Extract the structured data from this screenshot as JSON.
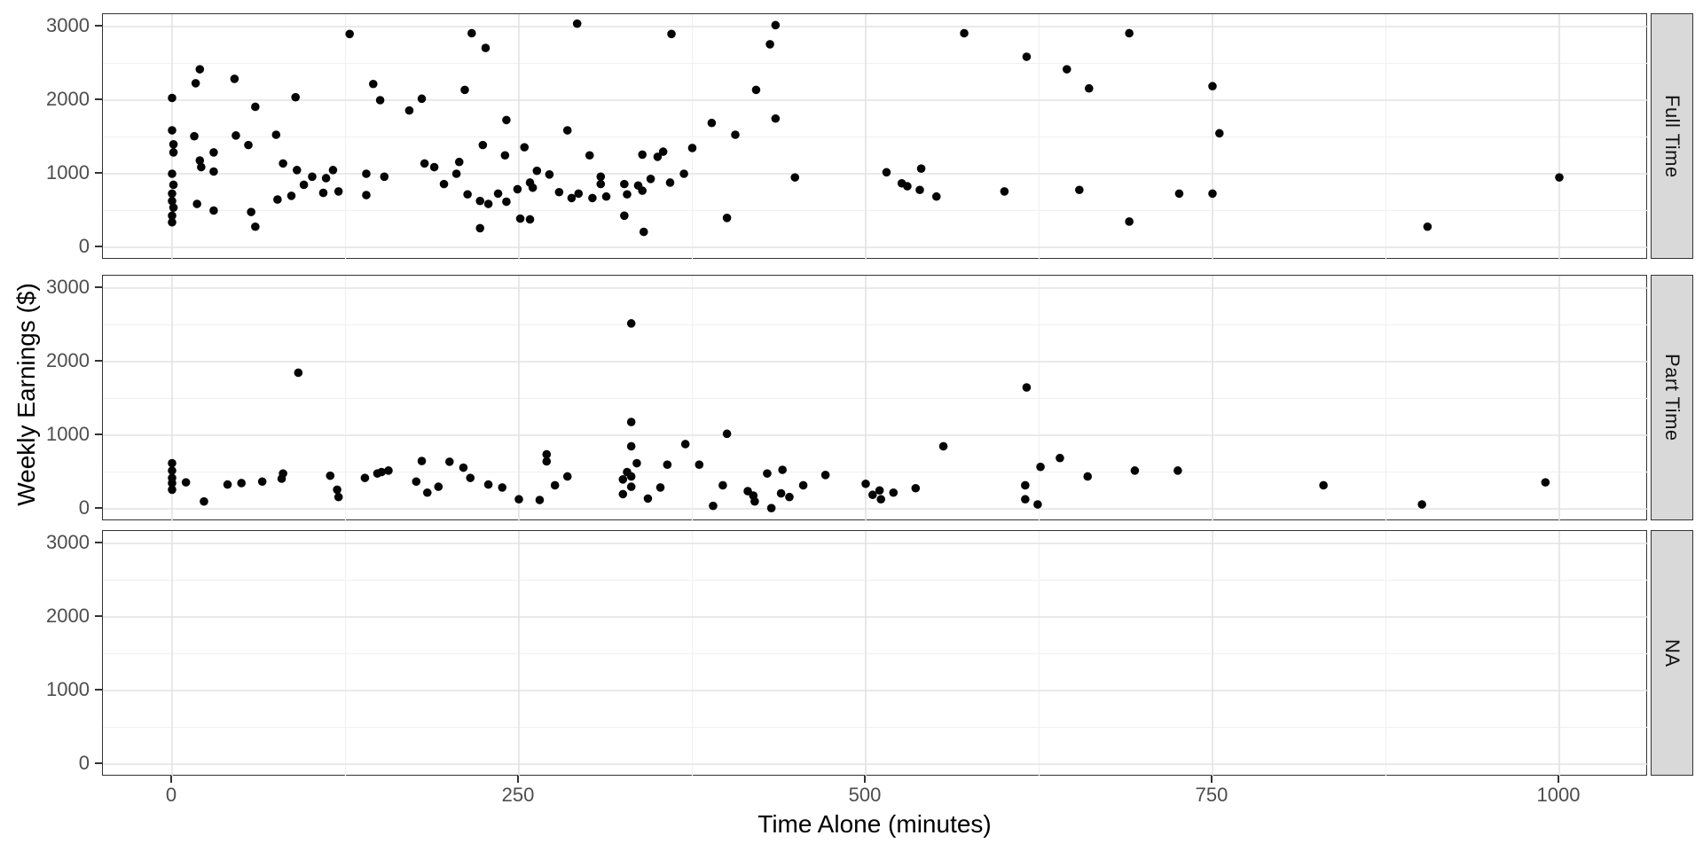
{
  "chart_data": {
    "type": "scatter",
    "title": "",
    "xlabel": "Time Alone (minutes)",
    "ylabel": "Weekly Earnings ($)",
    "x_ticks": [
      0,
      250,
      500,
      750,
      1000
    ],
    "x_minor_ticks": [
      125,
      375,
      625,
      875
    ],
    "y_ticks": [
      0,
      1000,
      2000,
      3000
    ],
    "y_minor_ticks": [
      500,
      1500,
      2500
    ],
    "xlim": [
      -50,
      1064
    ],
    "ylim": [
      -165,
      3170
    ],
    "legend": "none",
    "grid": "on",
    "facet_variable_position": "right",
    "facets": [
      {
        "label": "Full Time",
        "points": [
          [
            0,
            2030
          ],
          [
            0,
            1590
          ],
          [
            1,
            1400
          ],
          [
            1,
            1290
          ],
          [
            0,
            1000
          ],
          [
            1,
            850
          ],
          [
            0,
            730
          ],
          [
            0,
            630
          ],
          [
            1,
            540
          ],
          [
            0,
            430
          ],
          [
            0,
            340
          ],
          [
            17,
            2230
          ],
          [
            20,
            2420
          ],
          [
            45,
            2290
          ],
          [
            16,
            1510
          ],
          [
            20,
            1180
          ],
          [
            21,
            1090
          ],
          [
            30,
            1290
          ],
          [
            30,
            1030
          ],
          [
            46,
            1520
          ],
          [
            55,
            1390
          ],
          [
            60,
            1910
          ],
          [
            75,
            1530
          ],
          [
            80,
            1140
          ],
          [
            89,
            2040
          ],
          [
            90,
            1050
          ],
          [
            95,
            850
          ],
          [
            101,
            960
          ],
          [
            111,
            940
          ],
          [
            109,
            740
          ],
          [
            116,
            1050
          ],
          [
            120,
            760
          ],
          [
            76,
            650
          ],
          [
            86,
            700
          ],
          [
            18,
            590
          ],
          [
            30,
            500
          ],
          [
            57,
            480
          ],
          [
            60,
            280
          ],
          [
            128,
            2900
          ],
          [
            140,
            1000
          ],
          [
            153,
            960
          ],
          [
            140,
            710
          ],
          [
            145,
            2220
          ],
          [
            150,
            2000
          ],
          [
            171,
            1860
          ],
          [
            180,
            2020
          ],
          [
            182,
            1140
          ],
          [
            189,
            1090
          ],
          [
            196,
            860
          ],
          [
            205,
            1000
          ],
          [
            207,
            1160
          ],
          [
            211,
            2140
          ],
          [
            216,
            2910
          ],
          [
            226,
            2710
          ],
          [
            241,
            1730
          ],
          [
            224,
            1390
          ],
          [
            254,
            1360
          ],
          [
            240,
            1250
          ],
          [
            235,
            730
          ],
          [
            228,
            590
          ],
          [
            241,
            620
          ],
          [
            249,
            790
          ],
          [
            258,
            880
          ],
          [
            260,
            810
          ],
          [
            251,
            390
          ],
          [
            258,
            380
          ],
          [
            222,
            630
          ],
          [
            222,
            260
          ],
          [
            213,
            720
          ],
          [
            263,
            1040
          ],
          [
            272,
            990
          ],
          [
            279,
            750
          ],
          [
            285,
            1590
          ],
          [
            292,
            3040
          ],
          [
            435,
            3020
          ],
          [
            360,
            2900
          ],
          [
            431,
            2760
          ],
          [
            571,
            2910
          ],
          [
            690,
            2910
          ],
          [
            616,
            2590
          ],
          [
            645,
            2420
          ],
          [
            661,
            2160
          ],
          [
            421,
            2140
          ],
          [
            389,
            1690
          ],
          [
            435,
            1750
          ],
          [
            406,
            1530
          ],
          [
            375,
            1350
          ],
          [
            354,
            1300
          ],
          [
            339,
            1260
          ],
          [
            350,
            1230
          ],
          [
            301,
            1250
          ],
          [
            369,
            1000
          ],
          [
            309,
            960
          ],
          [
            309,
            860
          ],
          [
            326,
            860
          ],
          [
            345,
            930
          ],
          [
            336,
            840
          ],
          [
            339,
            770
          ],
          [
            359,
            880
          ],
          [
            293,
            730
          ],
          [
            288,
            670
          ],
          [
            303,
            670
          ],
          [
            313,
            690
          ],
          [
            328,
            720
          ],
          [
            449,
            950
          ],
          [
            326,
            430
          ],
          [
            340,
            210
          ],
          [
            400,
            400
          ],
          [
            515,
            1020
          ],
          [
            526,
            870
          ],
          [
            530,
            830
          ],
          [
            539,
            780
          ],
          [
            540,
            1070
          ],
          [
            551,
            690
          ],
          [
            600,
            760
          ],
          [
            654,
            780
          ],
          [
            690,
            350
          ],
          [
            750,
            2190
          ],
          [
            755,
            1550
          ],
          [
            726,
            730
          ],
          [
            750,
            730
          ],
          [
            1000,
            950
          ],
          [
            905,
            280
          ]
        ]
      },
      {
        "label": "Part Time",
        "points": [
          [
            0,
            620
          ],
          [
            0,
            520
          ],
          [
            0,
            420
          ],
          [
            0,
            350
          ],
          [
            0,
            260
          ],
          [
            10,
            360
          ],
          [
            23,
            100
          ],
          [
            40,
            330
          ],
          [
            50,
            350
          ],
          [
            65,
            370
          ],
          [
            79,
            410
          ],
          [
            80,
            480
          ],
          [
            91,
            1850
          ],
          [
            114,
            450
          ],
          [
            119,
            260
          ],
          [
            120,
            160
          ],
          [
            139,
            420
          ],
          [
            148,
            480
          ],
          [
            151,
            500
          ],
          [
            156,
            520
          ],
          [
            176,
            370
          ],
          [
            180,
            650
          ],
          [
            184,
            220
          ],
          [
            192,
            300
          ],
          [
            200,
            640
          ],
          [
            210,
            560
          ],
          [
            215,
            420
          ],
          [
            228,
            330
          ],
          [
            238,
            290
          ],
          [
            250,
            130
          ],
          [
            265,
            120
          ],
          [
            270,
            740
          ],
          [
            270,
            645
          ],
          [
            276,
            320
          ],
          [
            285,
            440
          ],
          [
            331,
            2520
          ],
          [
            331,
            1180
          ],
          [
            331,
            850
          ],
          [
            335,
            620
          ],
          [
            328,
            500
          ],
          [
            331,
            440
          ],
          [
            331,
            300
          ],
          [
            325,
            400
          ],
          [
            325,
            200
          ],
          [
            343,
            140
          ],
          [
            352,
            290
          ],
          [
            357,
            600
          ],
          [
            370,
            880
          ],
          [
            380,
            600
          ],
          [
            390,
            40
          ],
          [
            397,
            320
          ],
          [
            400,
            1020
          ],
          [
            415,
            240
          ],
          [
            419,
            180
          ],
          [
            420,
            100
          ],
          [
            429,
            480
          ],
          [
            432,
            10
          ],
          [
            440,
            530
          ],
          [
            439,
            210
          ],
          [
            445,
            160
          ],
          [
            455,
            320
          ],
          [
            471,
            460
          ],
          [
            500,
            340
          ],
          [
            505,
            190
          ],
          [
            510,
            250
          ],
          [
            511,
            130
          ],
          [
            520,
            220
          ],
          [
            536,
            280
          ],
          [
            556,
            850
          ],
          [
            616,
            1650
          ],
          [
            615,
            320
          ],
          [
            615,
            130
          ],
          [
            624,
            60
          ],
          [
            626,
            570
          ],
          [
            640,
            690
          ],
          [
            660,
            440
          ],
          [
            694,
            520
          ],
          [
            725,
            520
          ],
          [
            830,
            320
          ],
          [
            901,
            60
          ],
          [
            990,
            360
          ]
        ]
      },
      {
        "label": "NA",
        "points": []
      }
    ]
  },
  "style": {
    "point_color": "#050505",
    "grid_major_color": "#e3e3e3",
    "grid_minor_color": "#f1f1f1",
    "panel_border_color": "#333333",
    "strip_bg_color": "#d9d9d9",
    "tick_label_color": "#4d4d4d",
    "axis_title_color": "#000000"
  }
}
